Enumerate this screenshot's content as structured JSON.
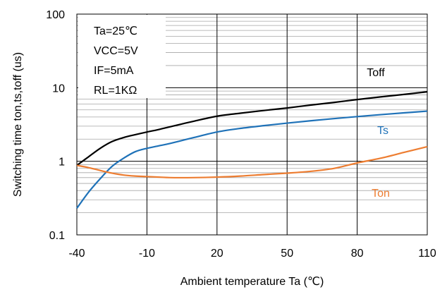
{
  "chart_data": {
    "type": "line",
    "xlabel": "Ambient temperature Ta (℃)",
    "ylabel": "Switching time ton,ts,toff (us)",
    "xlim": [
      -40,
      110
    ],
    "ylim": [
      0.1,
      100
    ],
    "yscale": "log",
    "x_ticks": [
      -40,
      -10,
      20,
      50,
      80,
      110
    ],
    "y_ticks": [
      0.1,
      1,
      10,
      100
    ],
    "y_tick_labels": [
      "0.1",
      "1",
      "10",
      "100"
    ],
    "grid": true,
    "conditions": [
      "Ta=25℃",
      "VCC=5V",
      "IF=5mA",
      "RL=1KΩ"
    ],
    "series": [
      {
        "name": "Toff",
        "color": "#000000",
        "x": [
          -40,
          -35,
          -30,
          -25,
          -20,
          -15,
          -10,
          -5,
          0,
          10,
          20,
          30,
          40,
          50,
          60,
          70,
          80,
          90,
          100,
          110
        ],
        "values": [
          0.88,
          1.15,
          1.5,
          1.85,
          2.1,
          2.3,
          2.5,
          2.7,
          2.95,
          3.5,
          4.1,
          4.5,
          4.9,
          5.3,
          5.8,
          6.3,
          6.9,
          7.5,
          8.1,
          8.8
        ]
      },
      {
        "name": "Ts",
        "color": "#1f72b8",
        "x": [
          -40,
          -35,
          -30,
          -25,
          -20,
          -15,
          -10,
          -5,
          0,
          10,
          20,
          30,
          40,
          50,
          60,
          70,
          80,
          90,
          100,
          110
        ],
        "values": [
          0.23,
          0.38,
          0.58,
          0.85,
          1.1,
          1.35,
          1.5,
          1.62,
          1.75,
          2.1,
          2.5,
          2.8,
          3.05,
          3.3,
          3.55,
          3.8,
          4.05,
          4.3,
          4.55,
          4.8
        ]
      },
      {
        "name": "Ton",
        "color": "#ed7d31",
        "x": [
          -40,
          -35,
          -30,
          -25,
          -20,
          -15,
          -10,
          -5,
          0,
          10,
          20,
          30,
          40,
          50,
          60,
          70,
          80,
          90,
          100,
          110
        ],
        "values": [
          0.88,
          0.82,
          0.75,
          0.69,
          0.65,
          0.63,
          0.62,
          0.61,
          0.6,
          0.6,
          0.61,
          0.63,
          0.66,
          0.69,
          0.73,
          0.8,
          0.95,
          1.1,
          1.32,
          1.58
        ]
      }
    ]
  }
}
